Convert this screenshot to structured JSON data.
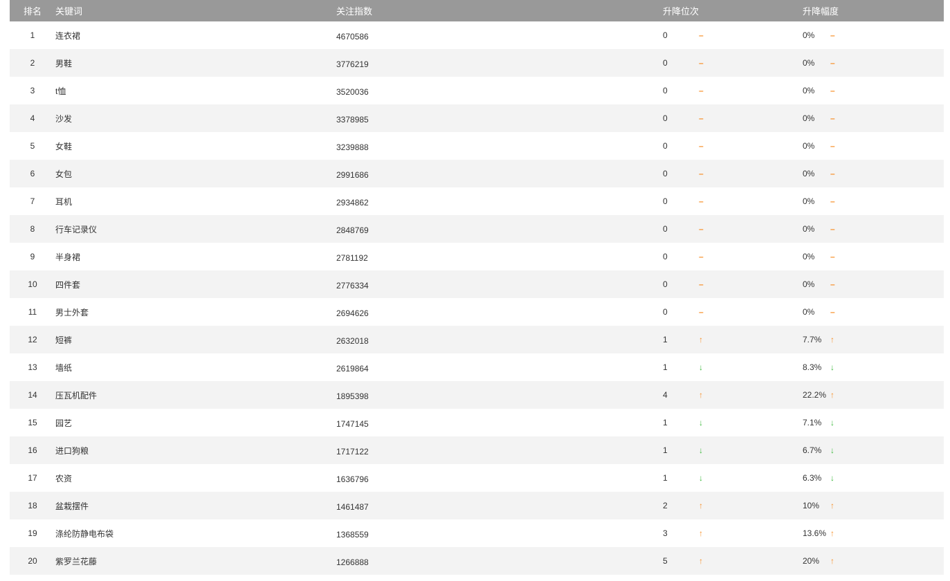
{
  "header": {
    "rank": "排名",
    "keyword": "关键词",
    "index": "关注指数",
    "rank_change": "升降位次",
    "change_pct": "升降幅度"
  },
  "colors": {
    "up": "#f7902a",
    "down": "#3cb93c",
    "header_bg": "#999999"
  },
  "rows": [
    {
      "rank": "1",
      "keyword": "连衣裙",
      "index": "4670586",
      "change": "0",
      "pct": "0%",
      "trend": "flat"
    },
    {
      "rank": "2",
      "keyword": "男鞋",
      "index": "3776219",
      "change": "0",
      "pct": "0%",
      "trend": "flat"
    },
    {
      "rank": "3",
      "keyword": "t恤",
      "index": "3520036",
      "change": "0",
      "pct": "0%",
      "trend": "flat"
    },
    {
      "rank": "4",
      "keyword": "沙发",
      "index": "3378985",
      "change": "0",
      "pct": "0%",
      "trend": "flat"
    },
    {
      "rank": "5",
      "keyword": "女鞋",
      "index": "3239888",
      "change": "0",
      "pct": "0%",
      "trend": "flat"
    },
    {
      "rank": "6",
      "keyword": "女包",
      "index": "2991686",
      "change": "0",
      "pct": "0%",
      "trend": "flat"
    },
    {
      "rank": "7",
      "keyword": "耳机",
      "index": "2934862",
      "change": "0",
      "pct": "0%",
      "trend": "flat"
    },
    {
      "rank": "8",
      "keyword": "行车记录仪",
      "index": "2848769",
      "change": "0",
      "pct": "0%",
      "trend": "flat"
    },
    {
      "rank": "9",
      "keyword": "半身裙",
      "index": "2781192",
      "change": "0",
      "pct": "0%",
      "trend": "flat"
    },
    {
      "rank": "10",
      "keyword": "四件套",
      "index": "2776334",
      "change": "0",
      "pct": "0%",
      "trend": "flat"
    },
    {
      "rank": "11",
      "keyword": "男士外套",
      "index": "2694626",
      "change": "0",
      "pct": "0%",
      "trend": "flat"
    },
    {
      "rank": "12",
      "keyword": "短裤",
      "index": "2632018",
      "change": "1",
      "pct": "7.7%",
      "trend": "up"
    },
    {
      "rank": "13",
      "keyword": "墙纸",
      "index": "2619864",
      "change": "1",
      "pct": "8.3%",
      "trend": "down"
    },
    {
      "rank": "14",
      "keyword": "压瓦机配件",
      "index": "1895398",
      "change": "4",
      "pct": "22.2%",
      "trend": "up"
    },
    {
      "rank": "15",
      "keyword": "园艺",
      "index": "1747145",
      "change": "1",
      "pct": "7.1%",
      "trend": "down"
    },
    {
      "rank": "16",
      "keyword": "进口狗粮",
      "index": "1717122",
      "change": "1",
      "pct": "6.7%",
      "trend": "down"
    },
    {
      "rank": "17",
      "keyword": "农资",
      "index": "1636796",
      "change": "1",
      "pct": "6.3%",
      "trend": "down"
    },
    {
      "rank": "18",
      "keyword": "盆栽摆件",
      "index": "1461487",
      "change": "2",
      "pct": "10%",
      "trend": "up"
    },
    {
      "rank": "19",
      "keyword": "涤纶防静电布袋",
      "index": "1368559",
      "change": "3",
      "pct": "13.6%",
      "trend": "up"
    },
    {
      "rank": "20",
      "keyword": "紫罗兰花藤",
      "index": "1266888",
      "change": "5",
      "pct": "20%",
      "trend": "up"
    }
  ]
}
